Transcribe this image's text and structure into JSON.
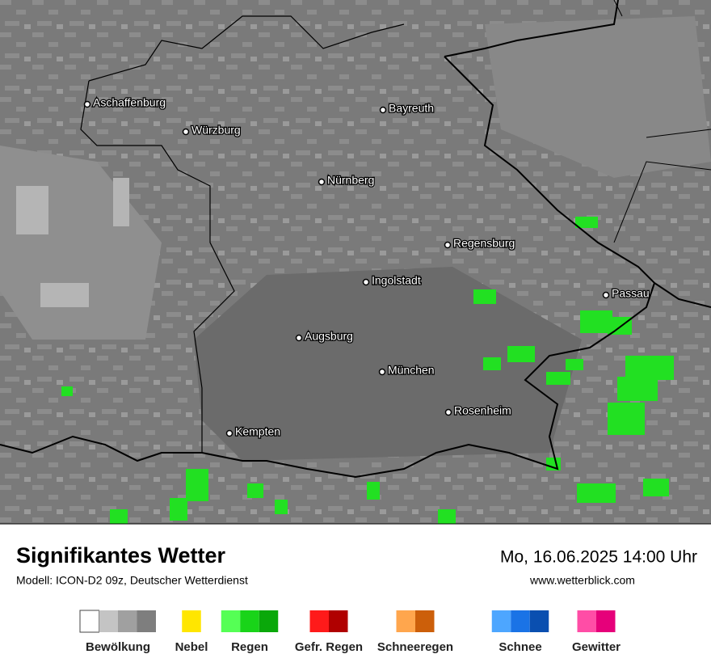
{
  "map": {
    "cities": [
      "Aschaffenburg",
      "Würzburg",
      "Bayreuth",
      "Nürnberg",
      "Regensburg",
      "Ingolstadt",
      "Passau",
      "Augsburg",
      "München",
      "Rosenheim",
      "Kempten"
    ]
  },
  "footer": {
    "title": "Signifikantes Wetter",
    "subtitle": "Modell: ICON-D2 09z, Deutscher Wetterdienst",
    "datetime": "Mo, 16.06.2025 14:00 Uhr",
    "website": "www.wetterblick.com"
  },
  "legend": [
    {
      "name": "Bewölkung",
      "colors": [
        "#ffffff",
        "#c4c4c4",
        "#a0a0a0",
        "#7e7e7e"
      ]
    },
    {
      "name": "Nebel",
      "colors": [
        "#ffe600"
      ]
    },
    {
      "name": "Regen",
      "colors": [
        "#55ff55",
        "#19d419",
        "#0aa80a"
      ]
    },
    {
      "name": "Gefr. Regen",
      "colors": [
        "#ff1a1a",
        "#b00000"
      ]
    },
    {
      "name": "Schneeregen",
      "colors": [
        "#ffa64d",
        "#cc5f0a"
      ]
    },
    {
      "name": "Schnee",
      "colors": [
        "#4da6ff",
        "#1a73e6",
        "#0a4fb0"
      ]
    },
    {
      "name": "Gewitter",
      "colors": [
        "#ff4da6",
        "#e6007a"
      ]
    }
  ]
}
